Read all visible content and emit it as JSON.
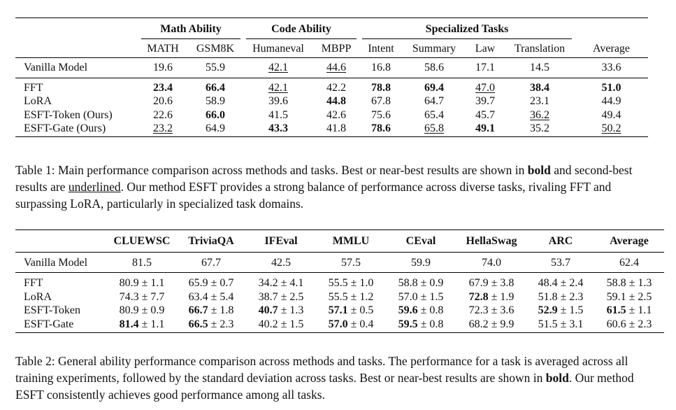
{
  "table1": {
    "groups": {
      "math": "Math Ability",
      "code": "Code Ability",
      "specialized": "Specialized Tasks"
    },
    "columns": [
      "MATH",
      "GSM8K",
      "Humaneval",
      "MBPP",
      "Intent",
      "Summary",
      "Law",
      "Translation",
      "Average"
    ],
    "rows": [
      {
        "label": "Vanilla Model",
        "cells": [
          {
            "v": "19.6",
            "s": ""
          },
          {
            "v": "55.9",
            "s": ""
          },
          {
            "v": "42.1",
            "s": "u"
          },
          {
            "v": "44.6",
            "s": "u"
          },
          {
            "v": "16.8",
            "s": ""
          },
          {
            "v": "58.6",
            "s": ""
          },
          {
            "v": "17.1",
            "s": ""
          },
          {
            "v": "14.5",
            "s": ""
          },
          {
            "v": "33.6",
            "s": ""
          }
        ]
      },
      {
        "label": "FFT",
        "cells": [
          {
            "v": "23.4",
            "s": "b"
          },
          {
            "v": "66.4",
            "s": "b"
          },
          {
            "v": "42.1",
            "s": "u"
          },
          {
            "v": "42.2",
            "s": ""
          },
          {
            "v": "78.8",
            "s": "b"
          },
          {
            "v": "69.4",
            "s": "b"
          },
          {
            "v": "47.0",
            "s": "u"
          },
          {
            "v": "38.4",
            "s": "b"
          },
          {
            "v": "51.0",
            "s": "b"
          }
        ]
      },
      {
        "label": "LoRA",
        "cells": [
          {
            "v": "20.6",
            "s": ""
          },
          {
            "v": "58.9",
            "s": ""
          },
          {
            "v": "39.6",
            "s": ""
          },
          {
            "v": "44.8",
            "s": "b"
          },
          {
            "v": "67.8",
            "s": ""
          },
          {
            "v": "64.7",
            "s": ""
          },
          {
            "v": "39.7",
            "s": ""
          },
          {
            "v": "23.1",
            "s": ""
          },
          {
            "v": "44.9",
            "s": ""
          }
        ]
      },
      {
        "label": "ESFT-Token (Ours)",
        "cells": [
          {
            "v": "22.6",
            "s": ""
          },
          {
            "v": "66.0",
            "s": "b"
          },
          {
            "v": "41.5",
            "s": ""
          },
          {
            "v": "42.6",
            "s": ""
          },
          {
            "v": "75.6",
            "s": ""
          },
          {
            "v": "65.4",
            "s": ""
          },
          {
            "v": "45.7",
            "s": ""
          },
          {
            "v": "36.2",
            "s": "u"
          },
          {
            "v": "49.4",
            "s": ""
          }
        ]
      },
      {
        "label": "ESFT-Gate (Ours)",
        "cells": [
          {
            "v": "23.2",
            "s": "u"
          },
          {
            "v": "64.9",
            "s": ""
          },
          {
            "v": "43.3",
            "s": "b"
          },
          {
            "v": "41.8",
            "s": ""
          },
          {
            "v": "78.6",
            "s": "b"
          },
          {
            "v": "65.8",
            "s": "u"
          },
          {
            "v": "49.1",
            "s": "b"
          },
          {
            "v": "35.2",
            "s": ""
          },
          {
            "v": "50.2",
            "s": "u"
          }
        ]
      }
    ]
  },
  "caption1": {
    "part1": "Table 1: Main performance comparison across methods and tasks. Best or near-best results are shown in ",
    "bold_word": "bold",
    "part2": " and second-best results are ",
    "underline_word": "underlined",
    "part3": ". Our method ESFT provides a strong balance of performance across diverse tasks, rivaling FFT and surpassing LoRA, particularly in specialized task domains."
  },
  "table2": {
    "columns": [
      "CLUEWSC",
      "TriviaQA",
      "IFEval",
      "MMLU",
      "CEval",
      "HellaSwag",
      "ARC",
      "Average"
    ],
    "rows": [
      {
        "label": "Vanilla Model",
        "cells": [
          {
            "v": "81.5",
            "sd": "",
            "s": ""
          },
          {
            "v": "67.7",
            "sd": "",
            "s": ""
          },
          {
            "v": "42.5",
            "sd": "",
            "s": ""
          },
          {
            "v": "57.5",
            "sd": "",
            "s": ""
          },
          {
            "v": "59.9",
            "sd": "",
            "s": ""
          },
          {
            "v": "74.0",
            "sd": "",
            "s": ""
          },
          {
            "v": "53.7",
            "sd": "",
            "s": ""
          },
          {
            "v": "62.4",
            "sd": "",
            "s": ""
          }
        ]
      },
      {
        "label": "FFT",
        "cells": [
          {
            "v": "80.9",
            "sd": "1.1",
            "s": ""
          },
          {
            "v": "65.9",
            "sd": "0.7",
            "s": ""
          },
          {
            "v": "34.2",
            "sd": "4.1",
            "s": ""
          },
          {
            "v": "55.5",
            "sd": "1.0",
            "s": ""
          },
          {
            "v": "58.8",
            "sd": "0.9",
            "s": ""
          },
          {
            "v": "67.9",
            "sd": "3.8",
            "s": ""
          },
          {
            "v": "48.4",
            "sd": "2.4",
            "s": ""
          },
          {
            "v": "58.8",
            "sd": "1.3",
            "s": ""
          }
        ]
      },
      {
        "label": "LoRA",
        "cells": [
          {
            "v": "74.3",
            "sd": "7.7",
            "s": ""
          },
          {
            "v": "63.4",
            "sd": "5.4",
            "s": ""
          },
          {
            "v": "38.7",
            "sd": "2.5",
            "s": ""
          },
          {
            "v": "55.5",
            "sd": "1.2",
            "s": ""
          },
          {
            "v": "57.0",
            "sd": "1.5",
            "s": ""
          },
          {
            "v": "72.8",
            "sd": "1.9",
            "s": "b"
          },
          {
            "v": "51.8",
            "sd": "2.3",
            "s": ""
          },
          {
            "v": "59.1",
            "sd": "2.5",
            "s": ""
          }
        ]
      },
      {
        "label": "ESFT-Token",
        "cells": [
          {
            "v": "80.9",
            "sd": "0.9",
            "s": ""
          },
          {
            "v": "66.7",
            "sd": "1.8",
            "s": "b"
          },
          {
            "v": "40.7",
            "sd": "1.3",
            "s": "b"
          },
          {
            "v": "57.1",
            "sd": "0.5",
            "s": "b"
          },
          {
            "v": "59.6",
            "sd": "0.8",
            "s": "b"
          },
          {
            "v": "72.3",
            "sd": "3.6",
            "s": ""
          },
          {
            "v": "52.9",
            "sd": "1.5",
            "s": "b"
          },
          {
            "v": "61.5",
            "sd": "1.1",
            "s": "b"
          }
        ]
      },
      {
        "label": "ESFT-Gate",
        "cells": [
          {
            "v": "81.4",
            "sd": "1.1",
            "s": "b"
          },
          {
            "v": "66.5",
            "sd": "2.3",
            "s": "b"
          },
          {
            "v": "40.2",
            "sd": "1.5",
            "s": ""
          },
          {
            "v": "57.0",
            "sd": "0.4",
            "s": "b"
          },
          {
            "v": "59.5",
            "sd": "0.8",
            "s": "b"
          },
          {
            "v": "68.2",
            "sd": "9.9",
            "s": ""
          },
          {
            "v": "51.5",
            "sd": "3.1",
            "s": ""
          },
          {
            "v": "60.6",
            "sd": "2.3",
            "s": ""
          }
        ]
      }
    ]
  },
  "caption2": {
    "part1": "Table 2: General ability performance comparison across methods and tasks. The performance for a task is averaged across all training experiments, followed by the standard deviation across tasks. Best or near-best results are shown in ",
    "bold_word": "bold",
    "part2": ". Our method ESFT consistently achieves good performance among all tasks."
  },
  "pm_symbol": "±"
}
